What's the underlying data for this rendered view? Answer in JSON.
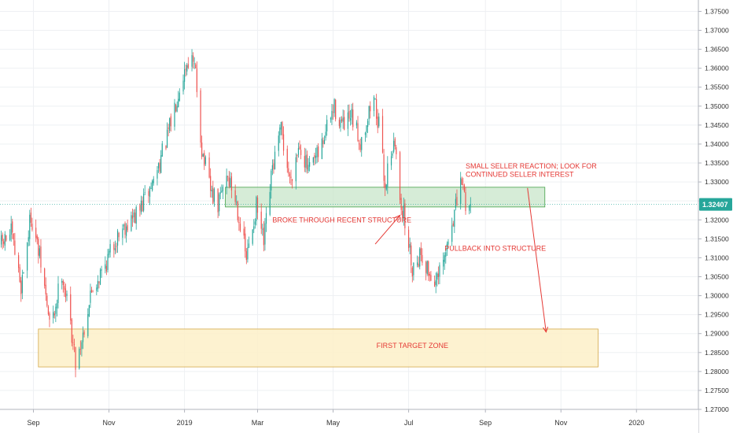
{
  "chart_data": {
    "type": "candlestick",
    "title": "",
    "xlabel": "",
    "ylabel": "",
    "ylim": [
      1.27,
      1.378
    ],
    "grid": true,
    "legend": "none",
    "x_range": [
      "2018-08-05",
      "2020-02-20"
    ],
    "y_ticks": [
      "1.37500",
      "1.37000",
      "1.36500",
      "1.36000",
      "1.35500",
      "1.35000",
      "1.34500",
      "1.34000",
      "1.33500",
      "1.33000",
      "1.32500",
      "1.32000",
      "1.31500",
      "1.31000",
      "1.30500",
      "1.30000",
      "1.29500",
      "1.29000",
      "1.28500",
      "1.28000",
      "1.27500",
      "1.27000"
    ],
    "x_ticks": [
      {
        "label": "Sep",
        "date": "2018-09-01"
      },
      {
        "label": "Nov",
        "date": "2018-11-01"
      },
      {
        "label": "2019",
        "date": "2019-01-01"
      },
      {
        "label": "Mar",
        "date": "2019-03-01"
      },
      {
        "label": "May",
        "date": "2019-05-01"
      },
      {
        "label": "Jul",
        "date": "2019-07-01"
      },
      {
        "label": "Sep",
        "date": "2019-09-01"
      },
      {
        "label": "Nov",
        "date": "2019-11-01"
      },
      {
        "label": "2020",
        "date": "2020-01-01"
      }
    ],
    "last_price": 1.32407,
    "last_price_label": "1.32407",
    "colors": {
      "up": "#26a69a",
      "down": "#ef5350",
      "annotation": "#e53935",
      "structure_fill": "#c8e6c9",
      "structure_border": "#43a047",
      "target_fill": "#fdf0c8",
      "target_border": "#d4a84a",
      "grid": "#eef0f3",
      "price_line": "#26a69a"
    },
    "path_points": [
      {
        "x": "2018-08-06",
        "y": 1.3135
      },
      {
        "x": "2018-08-14",
        "y": 1.3165
      },
      {
        "x": "2018-08-22",
        "y": 1.3025
      },
      {
        "x": "2018-08-30",
        "y": 1.3215
      },
      {
        "x": "2018-09-08",
        "y": 1.3065
      },
      {
        "x": "2018-09-15",
        "y": 1.2905
      },
      {
        "x": "2018-09-24",
        "y": 1.3065
      },
      {
        "x": "2018-10-01",
        "y": 1.2925
      },
      {
        "x": "2018-10-05",
        "y": 1.2825
      },
      {
        "x": "2018-10-10",
        "y": 1.2885
      },
      {
        "x": "2018-10-18",
        "y": 1.3015
      },
      {
        "x": "2018-10-28",
        "y": 1.3075
      },
      {
        "x": "2018-11-10",
        "y": 1.3175
      },
      {
        "x": "2018-11-24",
        "y": 1.3215
      },
      {
        "x": "2018-12-06",
        "y": 1.3295
      },
      {
        "x": "2018-12-18",
        "y": 1.3415
      },
      {
        "x": "2018-12-28",
        "y": 1.3555
      },
      {
        "x": "2019-01-05",
        "y": 1.3635
      },
      {
        "x": "2019-01-10",
        "y": 1.3585
      },
      {
        "x": "2019-01-15",
        "y": 1.3385
      },
      {
        "x": "2019-01-22",
        "y": 1.3275
      },
      {
        "x": "2019-01-28",
        "y": 1.3235
      },
      {
        "x": "2019-02-04",
        "y": 1.3325
      },
      {
        "x": "2019-02-12",
        "y": 1.3245
      },
      {
        "x": "2019-02-20",
        "y": 1.3095
      },
      {
        "x": "2019-02-28",
        "y": 1.3235
      },
      {
        "x": "2019-03-06",
        "y": 1.3135
      },
      {
        "x": "2019-03-13",
        "y": 1.3335
      },
      {
        "x": "2019-03-20",
        "y": 1.3435
      },
      {
        "x": "2019-03-27",
        "y": 1.3305
      },
      {
        "x": "2019-04-04",
        "y": 1.3405
      },
      {
        "x": "2019-04-11",
        "y": 1.3325
      },
      {
        "x": "2019-04-20",
        "y": 1.3375
      },
      {
        "x": "2019-04-27",
        "y": 1.3455
      },
      {
        "x": "2019-05-02",
        "y": 1.3495
      },
      {
        "x": "2019-05-09",
        "y": 1.3445
      },
      {
        "x": "2019-05-16",
        "y": 1.3465
      },
      {
        "x": "2019-05-23",
        "y": 1.3405
      },
      {
        "x": "2019-05-30",
        "y": 1.3485
      },
      {
        "x": "2019-06-03",
        "y": 1.3525
      },
      {
        "x": "2019-06-08",
        "y": 1.3425
      },
      {
        "x": "2019-06-12",
        "y": 1.3285
      },
      {
        "x": "2019-06-16",
        "y": 1.3385
      },
      {
        "x": "2019-06-20",
        "y": 1.3395
      },
      {
        "x": "2019-06-24",
        "y": 1.3265
      },
      {
        "x": "2019-06-29",
        "y": 1.3175
      },
      {
        "x": "2019-07-04",
        "y": 1.3075
      },
      {
        "x": "2019-07-11",
        "y": 1.3115
      },
      {
        "x": "2019-07-18",
        "y": 1.3055
      },
      {
        "x": "2019-07-24",
        "y": 1.3035
      },
      {
        "x": "2019-07-30",
        "y": 1.3095
      },
      {
        "x": "2019-08-05",
        "y": 1.3195
      },
      {
        "x": "2019-08-10",
        "y": 1.3255
      },
      {
        "x": "2019-08-13",
        "y": 1.3305
      },
      {
        "x": "2019-08-17",
        "y": 1.3225
      },
      {
        "x": "2019-08-20",
        "y": 1.3241
      }
    ],
    "zones": [
      {
        "name": "structure",
        "x_start": "2019-02-03",
        "x_end": "2019-10-19",
        "y_low": 1.3234,
        "y_high": 1.3286
      },
      {
        "name": "target",
        "x_start": "2018-09-05",
        "x_end": "2019-12-01",
        "y_low": 1.2812,
        "y_high": 1.2912
      }
    ],
    "annotations": [
      {
        "text": "SMALL SELLER REACTION; LOOK FOR",
        "x": "2019-08-16",
        "y": 1.3336
      },
      {
        "text": "CONTINUED SELLER INTEREST",
        "x": "2019-08-16",
        "y": 1.3314
      },
      {
        "text": "BROKE THROUGH RECENT STRUCTURE",
        "x": "2019-03-13",
        "y": 1.3193
      },
      {
        "text": "PULLBACK INTO STRUCTURE",
        "x": "2019-07-30",
        "y": 1.3118
      },
      {
        "text": "FIRST TARGET ZONE",
        "x": "2019-06-05",
        "y": 1.2862
      }
    ],
    "arrows": [
      {
        "from": {
          "x": "2019-06-04",
          "y": 1.3136
        },
        "to": {
          "x": "2019-06-24",
          "y": 1.3212
        }
      },
      {
        "from": {
          "x": "2019-10-05",
          "y": 1.3284
        },
        "to": {
          "x": "2019-10-20",
          "y": 1.2904
        }
      }
    ]
  }
}
